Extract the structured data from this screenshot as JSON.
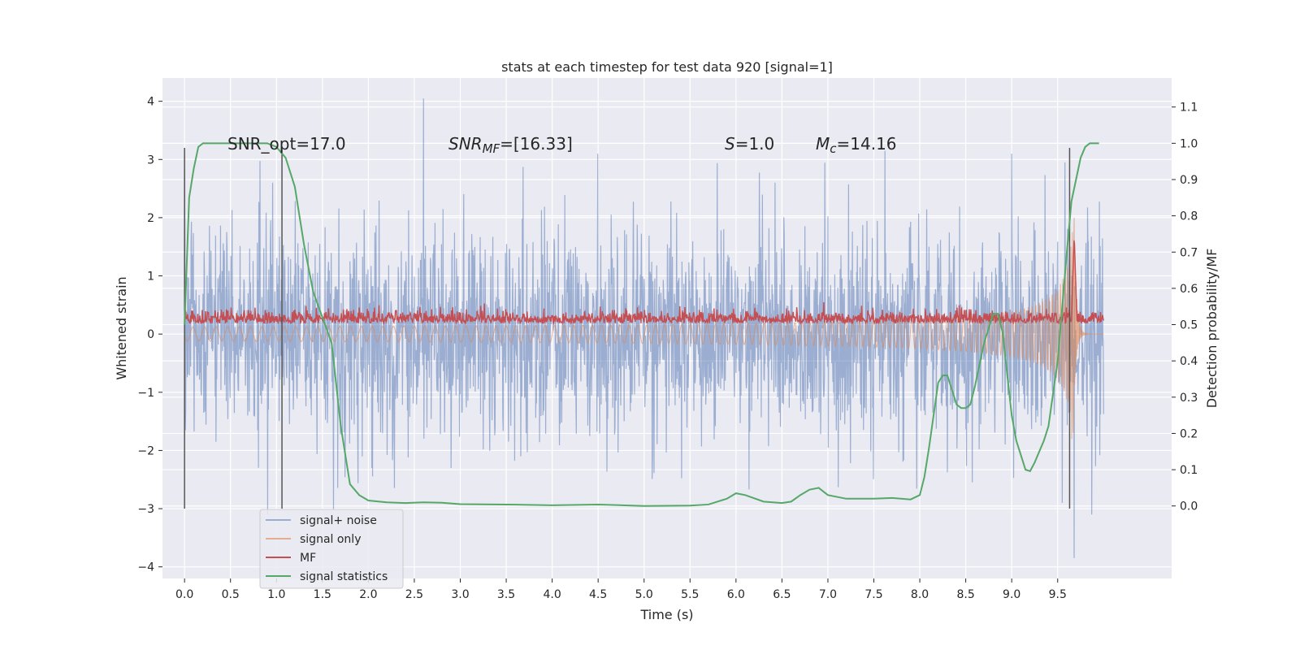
{
  "chart_data": {
    "type": "line",
    "title": "stats at each timestep for test data 920 [signal=1]",
    "xlabel": "Time (s)",
    "ylabel": "Whitened strain",
    "y2label": "Detection probability/MF",
    "xlim": [
      -0.24,
      10.74
    ],
    "ylim": [
      -4.2,
      4.4
    ],
    "y2lim": [
      -0.2,
      1.18
    ],
    "xticks": [
      "0.0",
      "0.5",
      "1.0",
      "1.5",
      "2.0",
      "2.5",
      "3.0",
      "3.5",
      "4.0",
      "4.5",
      "5.0",
      "5.5",
      "6.0",
      "6.5",
      "7.0",
      "7.5",
      "8.0",
      "8.5",
      "9.0",
      "9.5"
    ],
    "xtick_values": [
      0,
      0.5,
      1,
      1.5,
      2,
      2.5,
      3,
      3.5,
      4,
      4.5,
      5,
      5.5,
      6,
      6.5,
      7,
      7.5,
      8,
      8.5,
      9,
      9.5
    ],
    "yticks": [
      "4",
      "3",
      "2",
      "1",
      "0",
      "−1",
      "−2",
      "−3",
      "−4"
    ],
    "ytick_values": [
      4,
      3,
      2,
      1,
      0,
      -1,
      -2,
      -3,
      -4
    ],
    "y2ticks": [
      "1.1",
      "1.0",
      "0.9",
      "0.8",
      "0.7",
      "0.6",
      "0.5",
      "0.4",
      "0.3",
      "0.2",
      "0.1",
      "0.0"
    ],
    "y2tick_values": [
      1.1,
      1.0,
      0.9,
      0.8,
      0.7,
      0.6,
      0.5,
      0.4,
      0.3,
      0.2,
      0.1,
      0.0
    ],
    "grid": true,
    "legend_position": "lower-left",
    "annotations": {
      "snr_opt": "SNR_opt=17.0",
      "snr_mf_sym": "SNR",
      "snr_mf_sub": "MF",
      "snr_mf_val": "=[16.33]",
      "s_sym": "S",
      "s_val": "=1.0",
      "mc_sym": "M",
      "mc_sub": "c",
      "mc_val": "=14.16"
    },
    "vertical_markers": [
      {
        "x": 0.0,
        "y_range": [
          -3,
          3.2
        ]
      },
      {
        "x": 1.06,
        "y_range": [
          -3,
          3.2
        ]
      },
      {
        "x": 9.63,
        "y_range": [
          -3,
          3.2
        ]
      }
    ],
    "series": [
      {
        "name": "signal+ noise",
        "color": "#4c72b0",
        "opacity": 0.5,
        "kind": "noisy",
        "x_range": [
          0,
          10
        ],
        "std": 0.9,
        "ymin_observed": -3.85,
        "ymax_observed": 4.05,
        "spikes": [
          {
            "x": 2.6,
            "y": 4.05
          },
          {
            "x": 9.68,
            "y": -3.85
          },
          {
            "x": 7.62,
            "y": 3.15
          },
          {
            "x": 9.55,
            "y": -2.9
          }
        ]
      },
      {
        "name": "signal only",
        "color": "#dd8452",
        "opacity": 0.6,
        "kind": "chirp",
        "x_range": [
          0,
          10
        ],
        "merger_time": 9.68,
        "peak_amplitude": 2.0
      },
      {
        "name": "MF",
        "color": "#c44e52",
        "kind": "noisy",
        "axis": "right",
        "x_range": [
          0,
          10
        ],
        "baseline": 0.51,
        "noise": 0.012,
        "peak": {
          "x": 9.68,
          "y": 0.75
        }
      },
      {
        "name": "signal statistics",
        "color": "#55a868",
        "axis": "right",
        "kind": "line",
        "x": [
          0.0,
          0.05,
          0.1,
          0.15,
          0.2,
          0.3,
          0.5,
          0.7,
          0.9,
          1.0,
          1.1,
          1.2,
          1.3,
          1.4,
          1.5,
          1.6,
          1.7,
          1.8,
          1.9,
          2.0,
          2.2,
          2.4,
          2.6,
          2.8,
          3.0,
          3.5,
          4.0,
          4.5,
          5.0,
          5.5,
          5.7,
          5.9,
          6.0,
          6.1,
          6.3,
          6.5,
          6.6,
          6.7,
          6.8,
          6.9,
          7.0,
          7.2,
          7.5,
          7.7,
          7.9,
          8.0,
          8.05,
          8.1,
          8.2,
          8.25,
          8.3,
          8.35,
          8.4,
          8.45,
          8.5,
          8.55,
          8.6,
          8.7,
          8.8,
          8.85,
          8.9,
          9.0,
          9.05,
          9.1,
          9.15,
          9.2,
          9.25,
          9.3,
          9.35,
          9.4,
          9.5,
          9.6,
          9.65,
          9.7,
          9.75,
          9.8,
          9.85,
          9.9,
          9.95
        ],
        "y": [
          0.5,
          0.85,
          0.93,
          0.99,
          1.0,
          1.0,
          1.0,
          1.0,
          1.0,
          0.99,
          0.96,
          0.88,
          0.72,
          0.59,
          0.52,
          0.45,
          0.22,
          0.06,
          0.03,
          0.015,
          0.01,
          0.008,
          0.01,
          0.009,
          0.005,
          0.004,
          0.002,
          0.004,
          0.0,
          0.001,
          0.004,
          0.02,
          0.035,
          0.03,
          0.012,
          0.008,
          0.012,
          0.03,
          0.045,
          0.05,
          0.03,
          0.02,
          0.02,
          0.022,
          0.018,
          0.03,
          0.08,
          0.16,
          0.34,
          0.36,
          0.36,
          0.32,
          0.28,
          0.27,
          0.27,
          0.28,
          0.33,
          0.45,
          0.53,
          0.53,
          0.48,
          0.25,
          0.18,
          0.14,
          0.1,
          0.096,
          0.12,
          0.15,
          0.18,
          0.22,
          0.4,
          0.7,
          0.84,
          0.9,
          0.96,
          0.99,
          1.0,
          1.0,
          1.0
        ]
      }
    ]
  }
}
